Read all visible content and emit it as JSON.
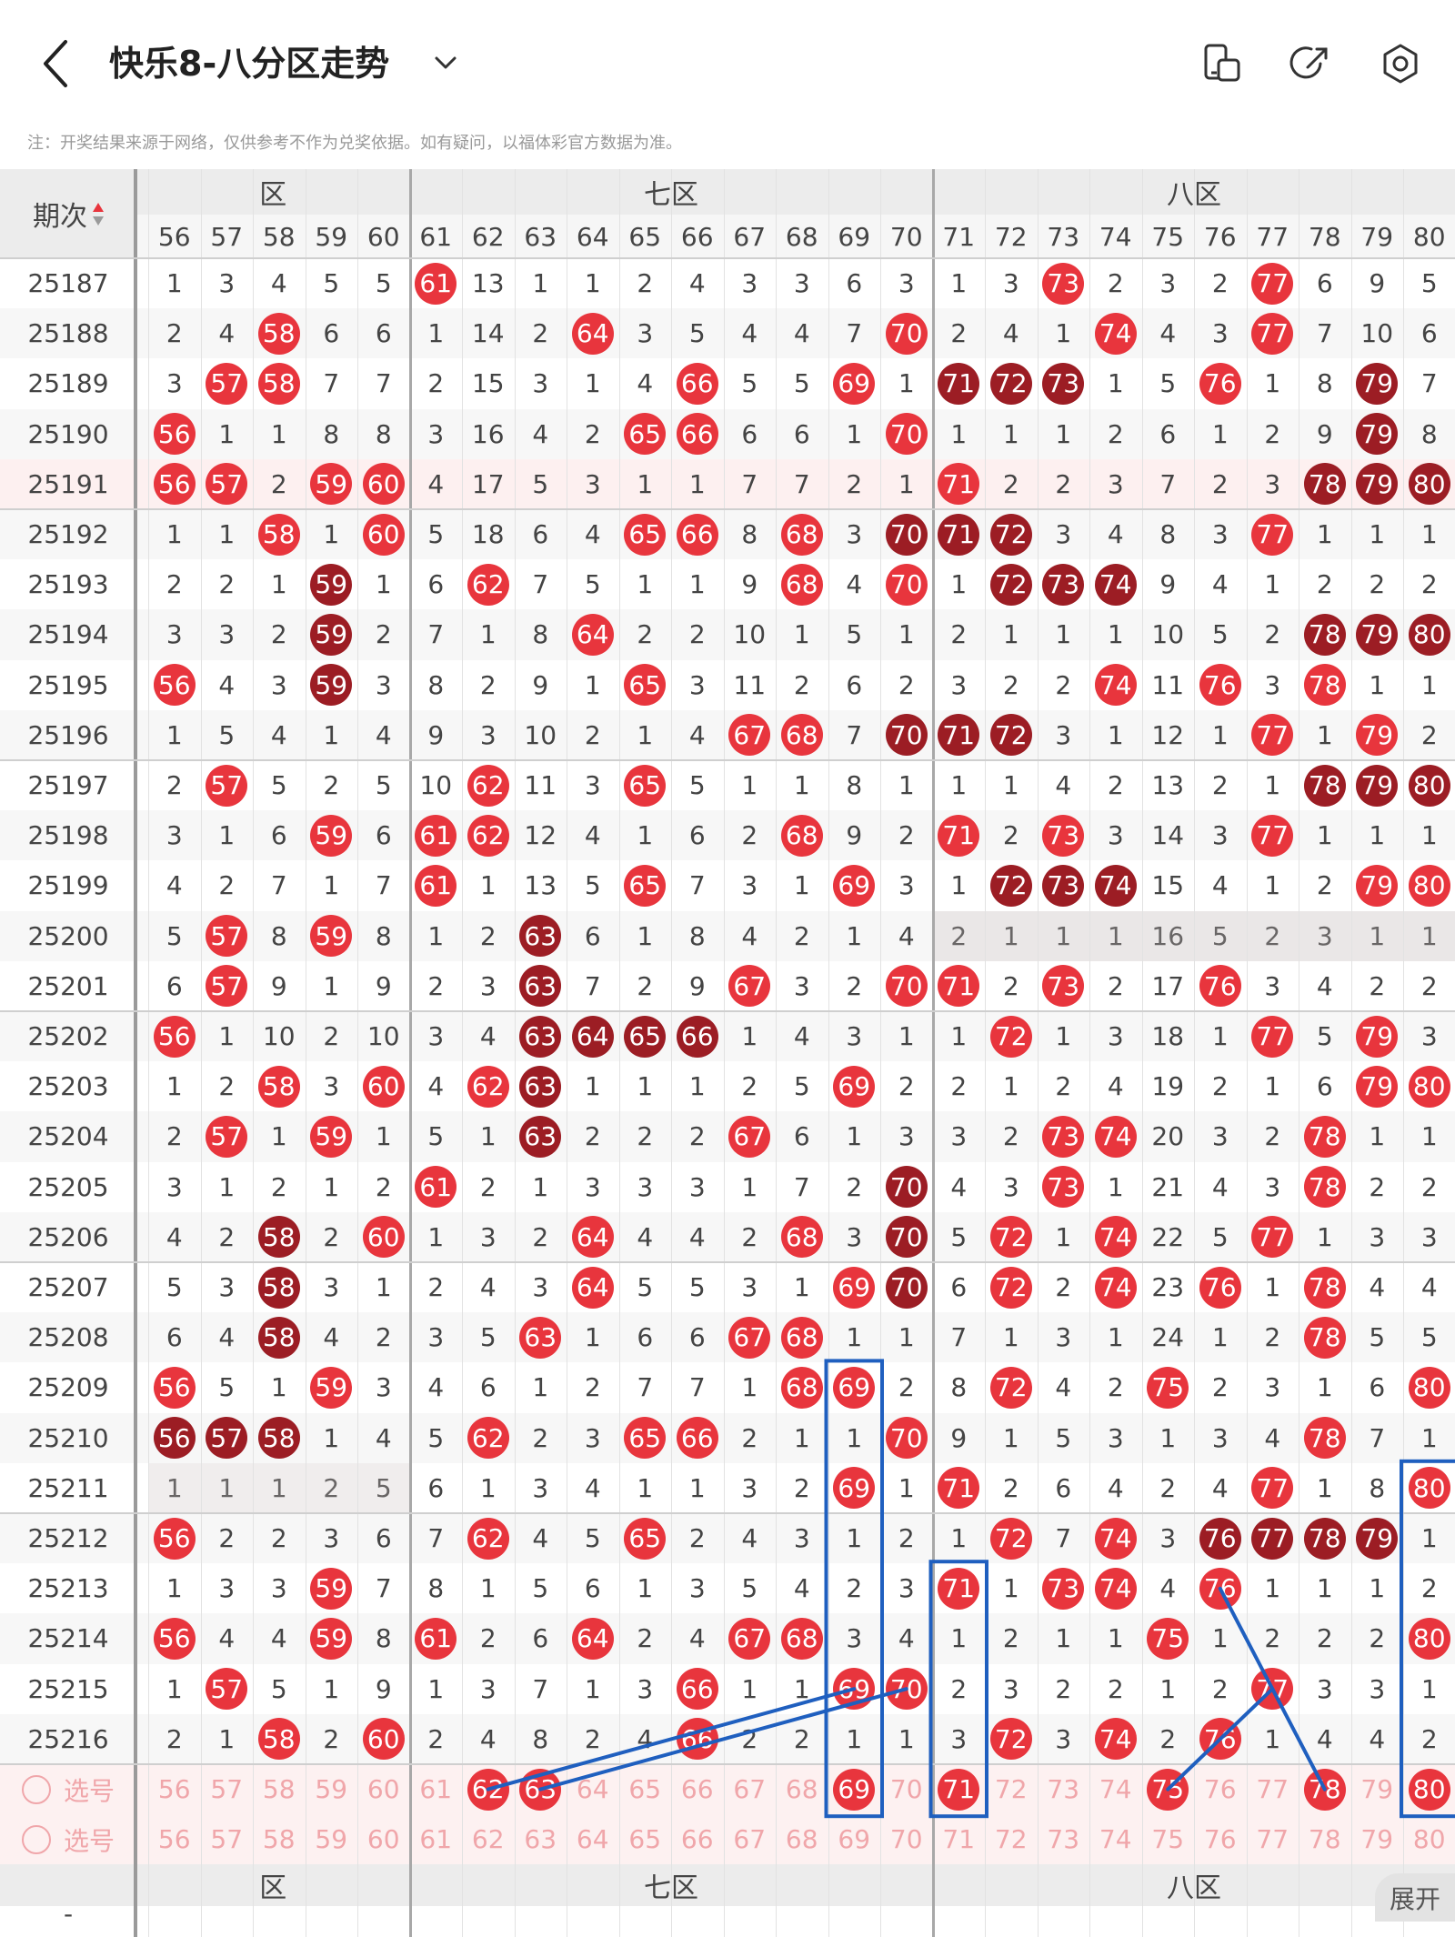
{
  "header": {
    "title": "快乐8-八分区走势",
    "notice": "注：开奖结果来源于网络，仅供参考不作为兑奖依据。如有疑问，以福体彩官方数据为准。"
  },
  "table": {
    "period_header": "期次",
    "zones": [
      "六区",
      "七区",
      "八区"
    ],
    "zone_header_visible": [
      {
        "name": "区",
        "cols": [
          56,
          60
        ]
      },
      {
        "name": "七区",
        "cols": [
          61,
          70
        ]
      },
      {
        "name": "八区",
        "cols": [
          71,
          80
        ]
      }
    ],
    "columns": [
      56,
      57,
      58,
      59,
      60,
      61,
      62,
      63,
      64,
      65,
      66,
      67,
      68,
      69,
      70,
      71,
      72,
      73,
      74,
      75,
      76,
      77,
      78,
      79,
      80
    ],
    "rows": [
      {
        "period": "25187",
        "cells": [
          "1",
          "3",
          "4",
          "5",
          "5",
          "*61",
          "13",
          "1",
          "1",
          "2",
          "4",
          "3",
          "3",
          "6",
          "3",
          "1",
          "3",
          "*73",
          "2",
          "3",
          "2",
          "*77",
          "6",
          "9",
          "5"
        ]
      },
      {
        "period": "25188",
        "cells": [
          "2",
          "4",
          "*58",
          "6",
          "6",
          "1",
          "14",
          "2",
          "*64",
          "3",
          "5",
          "4",
          "4",
          "7",
          "*70",
          "2",
          "4",
          "1",
          "*74",
          "4",
          "3",
          "*77",
          "7",
          "10",
          "6"
        ]
      },
      {
        "period": "25189",
        "cells": [
          "3",
          "*57",
          "*58",
          "7",
          "7",
          "2",
          "15",
          "3",
          "1",
          "4",
          "*66",
          "5",
          "5",
          "*69",
          "1",
          "#71",
          "#72",
          "#73",
          "1",
          "5",
          "*76",
          "1",
          "8",
          "#79",
          "7"
        ]
      },
      {
        "period": "25190",
        "cells": [
          "*56",
          "1",
          "1",
          "8",
          "8",
          "3",
          "16",
          "4",
          "2",
          "*65",
          "*66",
          "6",
          "6",
          "1",
          "*70",
          "1",
          "1",
          "1",
          "2",
          "6",
          "1",
          "2",
          "9",
          "#79",
          "8"
        ]
      },
      {
        "period": "25191",
        "cells": [
          "*56",
          "*57",
          "2",
          "*59",
          "*60",
          "4",
          "17",
          "5",
          "3",
          "1",
          "1",
          "7",
          "7",
          "2",
          "1",
          "*71",
          "2",
          "2",
          "3",
          "7",
          "2",
          "3",
          "#78",
          "#79",
          "#80"
        ]
      },
      {
        "period": "25192",
        "cells": [
          "1",
          "1",
          "*58",
          "1",
          "*60",
          "5",
          "18",
          "6",
          "4",
          "*65",
          "*66",
          "8",
          "*68",
          "3",
          "#70",
          "#71",
          "#72",
          "3",
          "4",
          "8",
          "3",
          "*77",
          "1",
          "1",
          "1"
        ]
      },
      {
        "period": "25193",
        "cells": [
          "2",
          "2",
          "1",
          "#59",
          "1",
          "6",
          "*62",
          "7",
          "5",
          "1",
          "1",
          "9",
          "*68",
          "4",
          "*70",
          "1",
          "#72",
          "#73",
          "#74",
          "9",
          "4",
          "1",
          "2",
          "2",
          "2"
        ]
      },
      {
        "period": "25194",
        "cells": [
          "3",
          "3",
          "2",
          "#59",
          "2",
          "7",
          "1",
          "8",
          "*64",
          "2",
          "2",
          "10",
          "1",
          "5",
          "1",
          "2",
          "1",
          "1",
          "1",
          "10",
          "5",
          "2",
          "#78",
          "#79",
          "#80"
        ]
      },
      {
        "period": "25195",
        "cells": [
          "*56",
          "4",
          "3",
          "#59",
          "3",
          "8",
          "2",
          "9",
          "1",
          "*65",
          "3",
          "11",
          "2",
          "6",
          "2",
          "3",
          "2",
          "2",
          "*74",
          "11",
          "*76",
          "3",
          "*78",
          "1",
          "1"
        ]
      },
      {
        "period": "25196",
        "cells": [
          "1",
          "5",
          "4",
          "1",
          "4",
          "9",
          "3",
          "10",
          "2",
          "1",
          "4",
          "*67",
          "*68",
          "7",
          "#70",
          "#71",
          "#72",
          "3",
          "1",
          "12",
          "1",
          "*77",
          "1",
          "*79",
          "2"
        ]
      },
      {
        "period": "25197",
        "cells": [
          "2",
          "*57",
          "5",
          "2",
          "5",
          "10",
          "*62",
          "11",
          "3",
          "*65",
          "5",
          "1",
          "1",
          "8",
          "1",
          "1",
          "1",
          "4",
          "2",
          "13",
          "2",
          "1",
          "#78",
          "#79",
          "#80"
        ]
      },
      {
        "period": "25198",
        "cells": [
          "3",
          "1",
          "6",
          "*59",
          "6",
          "*61",
          "*62",
          "12",
          "4",
          "1",
          "6",
          "2",
          "*68",
          "9",
          "2",
          "*71",
          "2",
          "*73",
          "3",
          "14",
          "3",
          "*77",
          "1",
          "1",
          "1"
        ]
      },
      {
        "period": "25199",
        "cells": [
          "4",
          "2",
          "7",
          "1",
          "7",
          "*61",
          "1",
          "13",
          "5",
          "*65",
          "7",
          "3",
          "1",
          "*69",
          "3",
          "1",
          "#72",
          "#73",
          "#74",
          "15",
          "4",
          "1",
          "2",
          "*79",
          "*80"
        ]
      },
      {
        "period": "25200",
        "cells": [
          "5",
          "*57",
          "8",
          "*59",
          "8",
          "1",
          "2",
          "#63",
          "6",
          "1",
          "8",
          "4",
          "2",
          "1",
          "4",
          "2",
          "1",
          "1",
          "1",
          "16",
          "5",
          "2",
          "3",
          "1",
          "1"
        ]
      },
      {
        "period": "25201",
        "cells": [
          "6",
          "*57",
          "9",
          "1",
          "9",
          "2",
          "3",
          "#63",
          "7",
          "2",
          "9",
          "*67",
          "3",
          "2",
          "*70",
          "*71",
          "2",
          "*73",
          "2",
          "17",
          "*76",
          "3",
          "4",
          "2",
          "2"
        ]
      },
      {
        "period": "25202",
        "cells": [
          "*56",
          "1",
          "10",
          "2",
          "10",
          "3",
          "4",
          "#63",
          "#64",
          "#65",
          "#66",
          "1",
          "4",
          "3",
          "1",
          "1",
          "*72",
          "1",
          "3",
          "18",
          "1",
          "*77",
          "5",
          "*79",
          "3"
        ]
      },
      {
        "period": "25203",
        "cells": [
          "1",
          "2",
          "*58",
          "3",
          "*60",
          "4",
          "*62",
          "#63",
          "1",
          "1",
          "1",
          "2",
          "5",
          "*69",
          "2",
          "2",
          "1",
          "2",
          "4",
          "19",
          "2",
          "1",
          "6",
          "*79",
          "*80"
        ]
      },
      {
        "period": "25204",
        "cells": [
          "2",
          "*57",
          "1",
          "*59",
          "1",
          "5",
          "1",
          "#63",
          "2",
          "2",
          "2",
          "*67",
          "6",
          "1",
          "3",
          "3",
          "2",
          "*73",
          "*74",
          "20",
          "3",
          "2",
          "*78",
          "1",
          "1"
        ]
      },
      {
        "period": "25205",
        "cells": [
          "3",
          "1",
          "2",
          "1",
          "2",
          "*61",
          "2",
          "1",
          "3",
          "3",
          "3",
          "1",
          "7",
          "2",
          "#70",
          "4",
          "3",
          "*73",
          "1",
          "21",
          "4",
          "3",
          "*78",
          "2",
          "2"
        ]
      },
      {
        "period": "25206",
        "cells": [
          "4",
          "2",
          "#58",
          "2",
          "*60",
          "1",
          "3",
          "2",
          "*64",
          "4",
          "4",
          "2",
          "*68",
          "3",
          "#70",
          "5",
          "*72",
          "1",
          "*74",
          "22",
          "5",
          "*77",
          "1",
          "3",
          "3"
        ]
      },
      {
        "period": "25207",
        "cells": [
          "5",
          "3",
          "#58",
          "3",
          "1",
          "2",
          "4",
          "3",
          "*64",
          "5",
          "5",
          "3",
          "1",
          "*69",
          "#70",
          "6",
          "*72",
          "2",
          "*74",
          "23",
          "*76",
          "1",
          "*78",
          "4",
          "4"
        ]
      },
      {
        "period": "25208",
        "cells": [
          "6",
          "4",
          "#58",
          "4",
          "2",
          "3",
          "5",
          "*63",
          "1",
          "6",
          "6",
          "*67",
          "*68",
          "1",
          "1",
          "7",
          "1",
          "3",
          "1",
          "24",
          "1",
          "2",
          "*78",
          "5",
          "5"
        ]
      },
      {
        "period": "25209",
        "cells": [
          "*56",
          "5",
          "1",
          "*59",
          "3",
          "4",
          "6",
          "1",
          "2",
          "7",
          "7",
          "1",
          "*68",
          "*69",
          "2",
          "8",
          "*72",
          "4",
          "2",
          "*75",
          "2",
          "3",
          "1",
          "6",
          "*80"
        ]
      },
      {
        "period": "25210",
        "cells": [
          "#56",
          "#57",
          "#58",
          "1",
          "4",
          "5",
          "*62",
          "2",
          "3",
          "*65",
          "*66",
          "2",
          "1",
          "1",
          "*70",
          "9",
          "1",
          "5",
          "3",
          "1",
          "3",
          "4",
          "*78",
          "7",
          "1"
        ]
      },
      {
        "period": "25211",
        "cells": [
          "1",
          "1",
          "1",
          "2",
          "5",
          "6",
          "1",
          "3",
          "4",
          "1",
          "1",
          "3",
          "2",
          "*69",
          "1",
          "*71",
          "2",
          "6",
          "4",
          "2",
          "4",
          "*77",
          "1",
          "8",
          "*80"
        ]
      },
      {
        "period": "25212",
        "cells": [
          "*56",
          "2",
          "2",
          "3",
          "6",
          "7",
          "*62",
          "4",
          "5",
          "*65",
          "2",
          "4",
          "3",
          "1",
          "2",
          "1",
          "*72",
          "7",
          "*74",
          "3",
          "#76",
          "#77",
          "#78",
          "#79",
          "1"
        ]
      },
      {
        "period": "25213",
        "cells": [
          "1",
          "3",
          "3",
          "*59",
          "7",
          "8",
          "1",
          "5",
          "6",
          "1",
          "3",
          "5",
          "4",
          "2",
          "3",
          "*71",
          "1",
          "*73",
          "*74",
          "4",
          "*76",
          "1",
          "1",
          "1",
          "2"
        ]
      },
      {
        "period": "25214",
        "cells": [
          "*56",
          "4",
          "4",
          "*59",
          "8",
          "*61",
          "2",
          "6",
          "*64",
          "2",
          "4",
          "*67",
          "*68",
          "3",
          "4",
          "1",
          "2",
          "1",
          "1",
          "*75",
          "1",
          "2",
          "2",
          "2",
          "*80"
        ]
      },
      {
        "period": "25215",
        "cells": [
          "1",
          "*57",
          "5",
          "1",
          "9",
          "1",
          "3",
          "7",
          "1",
          "3",
          "*66",
          "1",
          "1",
          "*69",
          "*70",
          "2",
          "3",
          "2",
          "2",
          "1",
          "2",
          "*77",
          "3",
          "3",
          "1"
        ]
      },
      {
        "period": "25216",
        "cells": [
          "2",
          "1",
          "*58",
          "2",
          "*60",
          "2",
          "4",
          "8",
          "2",
          "4",
          "*66",
          "2",
          "2",
          "1",
          "1",
          "3",
          "*72",
          "3",
          "*74",
          "2",
          "*76",
          "1",
          "4",
          "4",
          "2"
        ]
      }
    ],
    "select_rows": [
      {
        "label": "选号",
        "selected": [
          62,
          63,
          69,
          71,
          75,
          78,
          80
        ]
      },
      {
        "label": "选号",
        "selected": []
      }
    ],
    "expand_label": "展开",
    "footer_dash": "-"
  },
  "colors": {
    "ball_red": "#e8353d",
    "ball_dark": "#9c1d24",
    "annotation_blue": "#1f5fbf",
    "select_text": "#f0a6aa"
  }
}
